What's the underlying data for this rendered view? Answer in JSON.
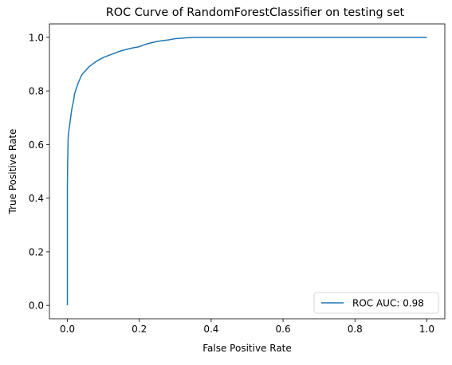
{
  "chart_data": {
    "type": "line",
    "title": "ROC Curve of RandomForestClassifier on testing set",
    "xlabel": "False Positive Rate",
    "ylabel": "True Positive Rate",
    "xlim": [
      -0.05,
      1.05
    ],
    "ylim": [
      -0.05,
      1.05
    ],
    "xticks": [
      0.0,
      0.2,
      0.4,
      0.6,
      0.8,
      1.0
    ],
    "xtick_labels": [
      "0.0",
      "0.2",
      "0.4",
      "0.6",
      "0.8",
      "1.0"
    ],
    "yticks": [
      0.0,
      0.2,
      0.4,
      0.6,
      0.8,
      1.0
    ],
    "ytick_labels": [
      "0.0",
      "0.2",
      "0.4",
      "0.6",
      "0.8",
      "1.0"
    ],
    "grid": false,
    "legend_position": "lower right",
    "series": [
      {
        "name": "ROC AUC: 0.98",
        "color": "#1f77b4",
        "x": [
          0.0,
          0.0,
          0.001,
          0.002,
          0.003,
          0.005,
          0.008,
          0.01,
          0.012,
          0.015,
          0.018,
          0.02,
          0.025,
          0.03,
          0.04,
          0.05,
          0.06,
          0.07,
          0.08,
          0.1,
          0.12,
          0.15,
          0.18,
          0.2,
          0.22,
          0.25,
          0.28,
          0.3,
          0.33,
          0.35,
          0.5,
          0.7,
          1.0
        ],
        "y": [
          0.0,
          0.45,
          0.55,
          0.62,
          0.64,
          0.66,
          0.69,
          0.71,
          0.73,
          0.75,
          0.77,
          0.79,
          0.81,
          0.83,
          0.86,
          0.875,
          0.89,
          0.9,
          0.91,
          0.925,
          0.935,
          0.95,
          0.96,
          0.965,
          0.975,
          0.985,
          0.99,
          0.995,
          0.998,
          1.0,
          1.0,
          1.0,
          1.0
        ]
      }
    ]
  }
}
